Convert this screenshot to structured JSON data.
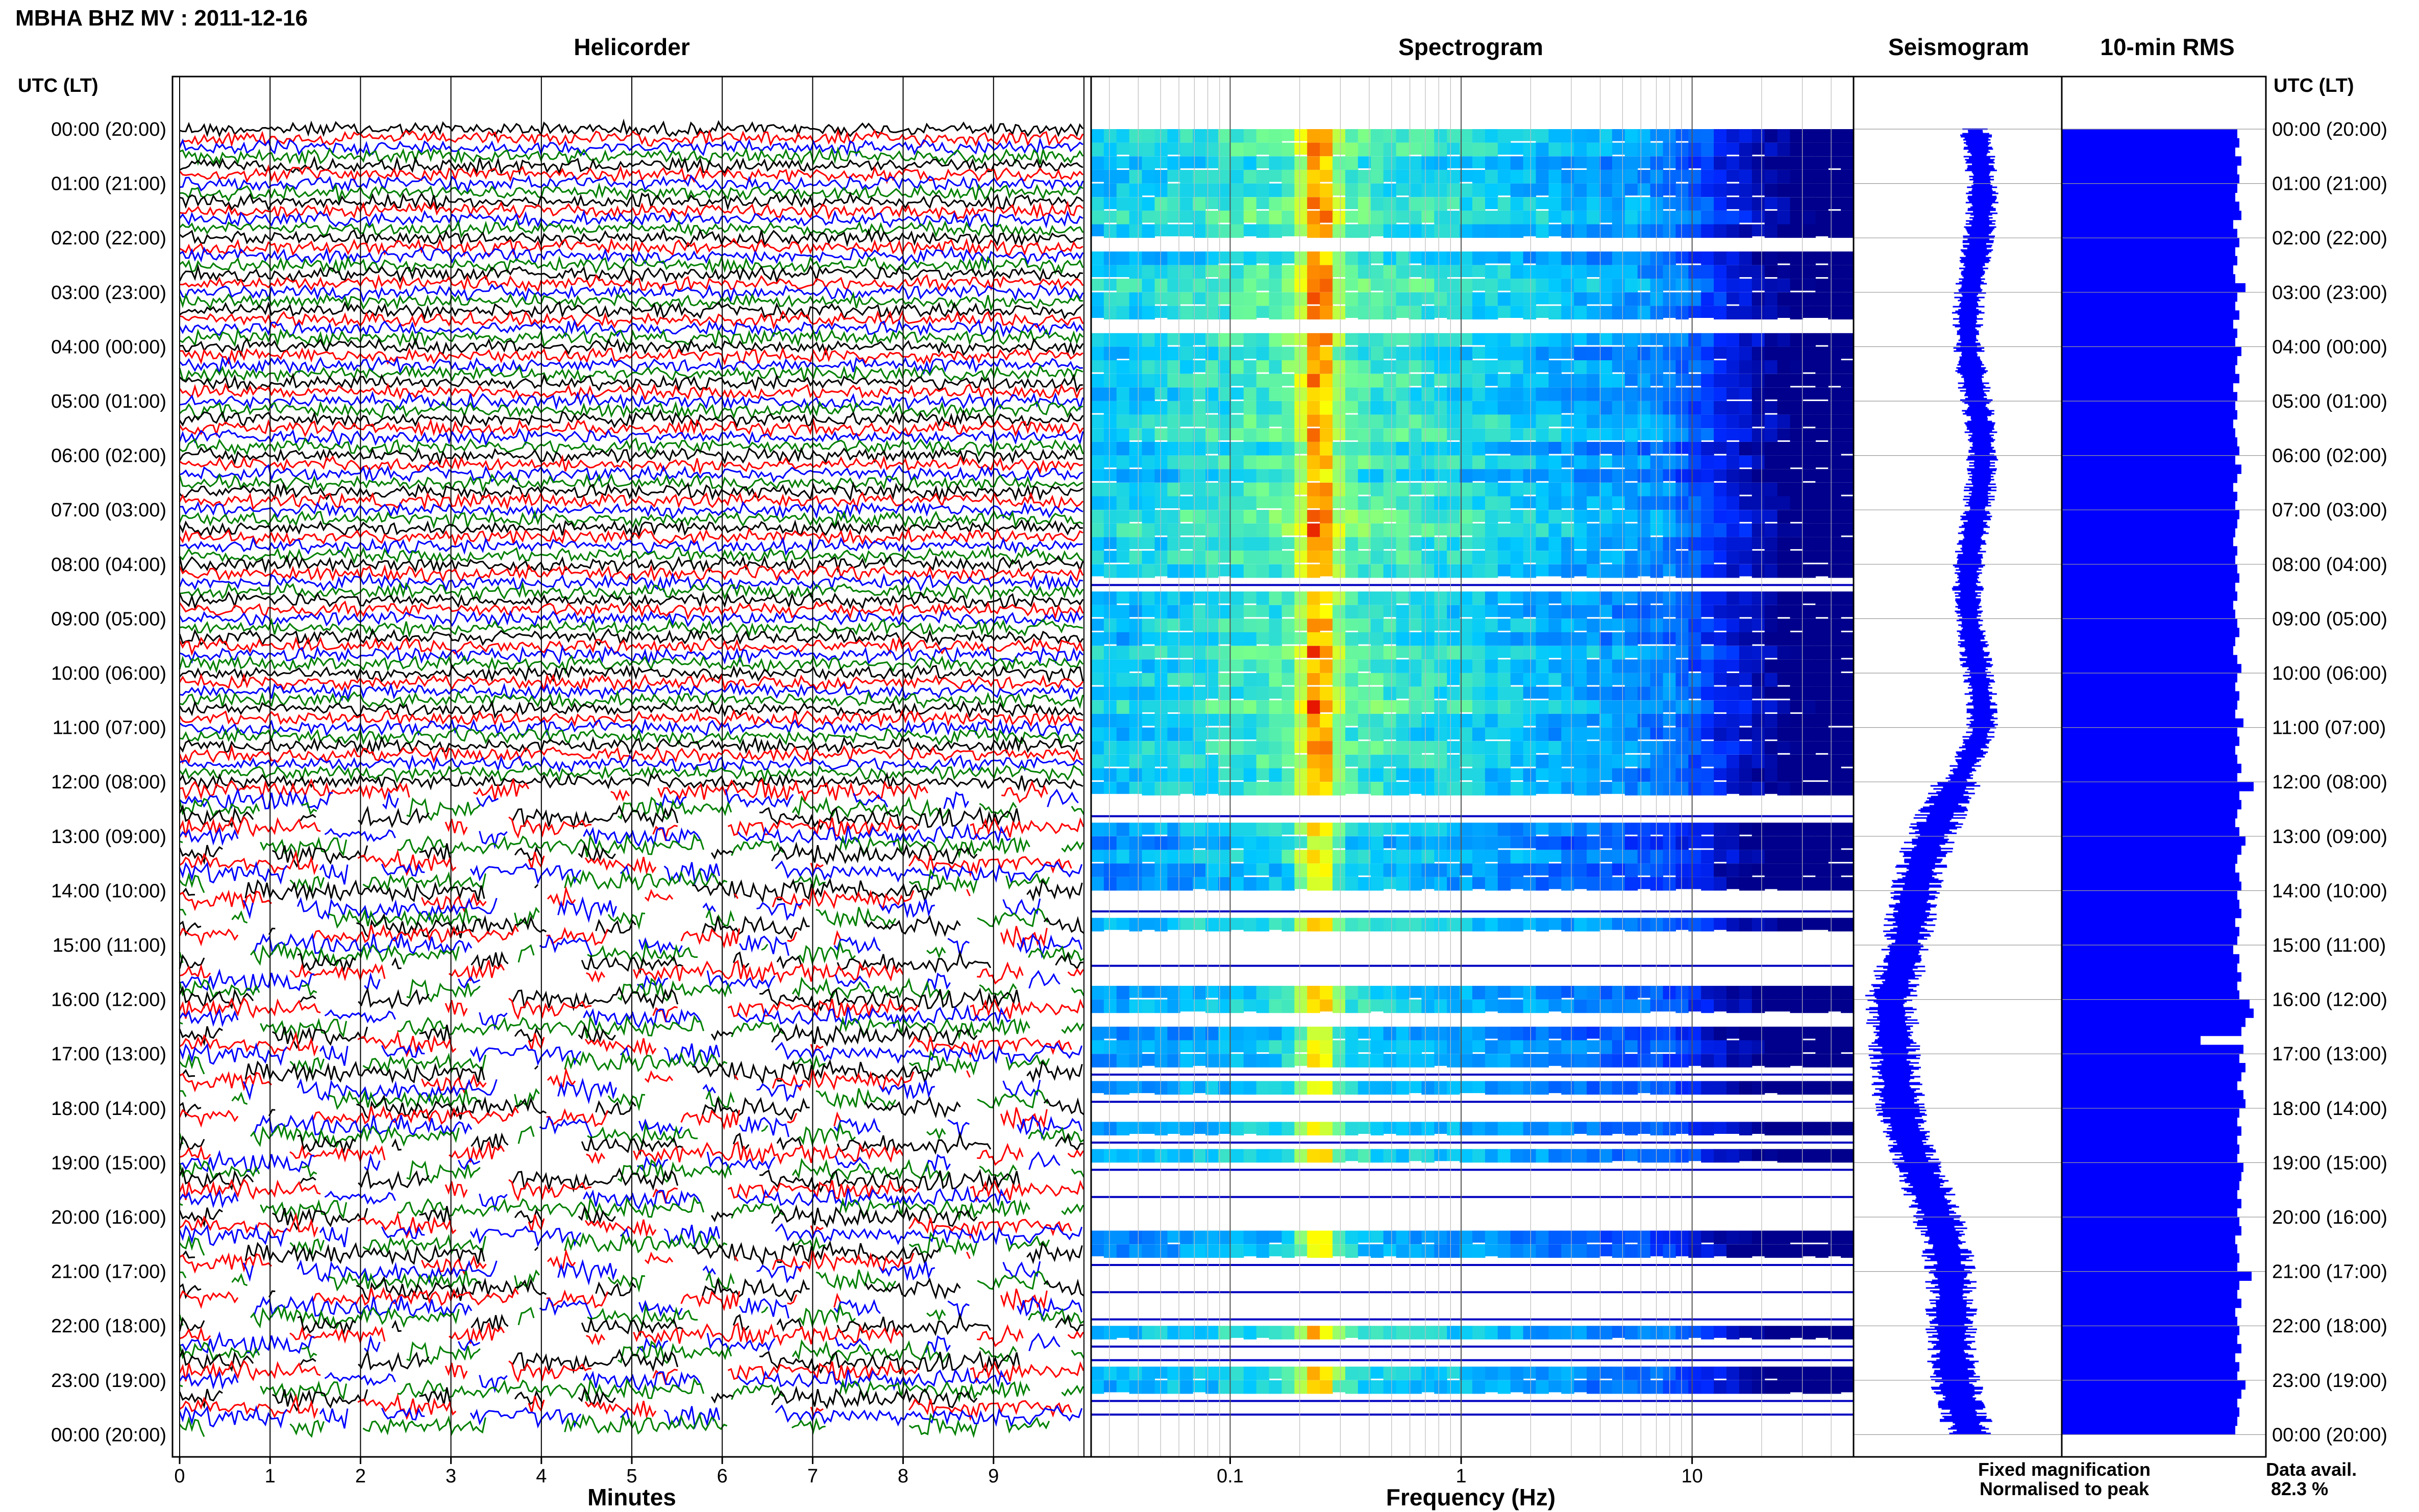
{
  "header": {
    "station_title": "MBHA BHZ MV : 2011-12-16"
  },
  "panels": {
    "helicorder": "Helicorder",
    "spectrogram": "Spectrogram",
    "seismogram": "Seismogram",
    "rms": "10-min RMS"
  },
  "axis": {
    "time_header": "UTC (LT)",
    "minutes_label": "Minutes",
    "frequency_label": "Frequency (Hz)",
    "minute_ticks": [
      "0",
      "1",
      "2",
      "3",
      "4",
      "5",
      "6",
      "7",
      "8",
      "9"
    ],
    "frequency_ticks": [
      "0.1",
      "1",
      "10"
    ]
  },
  "hour_labels": [
    "00:00 (20:00)",
    "01:00 (21:00)",
    "02:00 (22:00)",
    "03:00 (23:00)",
    "04:00 (00:00)",
    "05:00 (01:00)",
    "06:00 (02:00)",
    "07:00 (03:00)",
    "08:00 (04:00)",
    "09:00 (05:00)",
    "10:00 (06:00)",
    "11:00 (07:00)",
    "12:00 (08:00)",
    "13:00 (09:00)",
    "14:00 (10:00)",
    "15:00 (11:00)",
    "16:00 (12:00)",
    "17:00 (13:00)",
    "18:00 (14:00)",
    "19:00 (15:00)",
    "20:00 (16:00)",
    "21:00 (17:00)",
    "22:00 (18:00)",
    "23:00 (19:00)",
    "00:00 (20:00)"
  ],
  "legend": {
    "fixed": "Fixed magnification",
    "normalised": "Normalised to peak",
    "fixed_color": "#0000ff",
    "normalised_color": "#ff0000"
  },
  "data_availability": {
    "label": "Data avail.",
    "value": "82.3 %"
  },
  "colors": {
    "trace_cycle": [
      "#000000",
      "#ff0000",
      "#0000ff",
      "#008000"
    ],
    "rms_bar": "#0000ff",
    "seismogram": "#0000ff"
  },
  "chart_data": {
    "type": "heatmap",
    "title": "MBHA BHZ MV : 2011-12-16",
    "helicorder": {
      "x_range_minutes": [
        0,
        10
      ],
      "rows_per_hour": 6
    },
    "spectrogram": {
      "x_scale": "log",
      "x_range_hz": [
        0.025,
        50
      ]
    },
    "data_availability_percent": 82.3,
    "rms_10min_relative": [
      0.86,
      0.87,
      0.85,
      0.88,
      0.86,
      0.87,
      0.86,
      0.85,
      0.87,
      0.88,
      0.84,
      0.86,
      0.87,
      0.85,
      0.86,
      0.84,
      0.85,
      0.9,
      0.86,
      0.85,
      0.87,
      0.84,
      0.86,
      0.85,
      0.88,
      0.86,
      0.85,
      0.87,
      0.84,
      0.86,
      0.85,
      0.86,
      0.84,
      0.85,
      0.86,
      0.87,
      0.85,
      0.88,
      0.86,
      0.84,
      0.86,
      0.85,
      0.87,
      0.86,
      0.85,
      0.84,
      0.86,
      0.85,
      0.86,
      0.87,
      0.85,
      0.86,
      0.84,
      0.85,
      0.86,
      0.87,
      0.85,
      0.84,
      0.86,
      0.88,
      0.86,
      0.85,
      0.87,
      0.86,
      0.85,
      0.89,
      0.86,
      0.87,
      0.85,
      0.86,
      0.88,
      0.86,
      0.94,
      0.87,
      0.88,
      0.86,
      0.85,
      0.87,
      0.9,
      0.88,
      0.86,
      0.85,
      0.87,
      0.88,
      0.86,
      0.87,
      0.88,
      0.85,
      0.87,
      0.86,
      0.84,
      0.87,
      0.86,
      0.88,
      0.86,
      0.87,
      0.92,
      0.94,
      0.9,
      0.88,
      0.68,
      0.89,
      0.87,
      0.9,
      0.88,
      0.86,
      0.89,
      0.9,
      0.87,
      0.86,
      0.88,
      0.86,
      0.87,
      0.86,
      0.89,
      0.88,
      0.87,
      0.86,
      0.88,
      0.86,
      0.87,
      0.88,
      0.85,
      0.86,
      0.87,
      0.86,
      0.93,
      0.87,
      0.86,
      0.88,
      0.85,
      0.86,
      0.87,
      0.86,
      0.88,
      0.85,
      0.87,
      0.86,
      0.9,
      0.88,
      0.86,
      0.87,
      0.86,
      0.85
    ]
  }
}
